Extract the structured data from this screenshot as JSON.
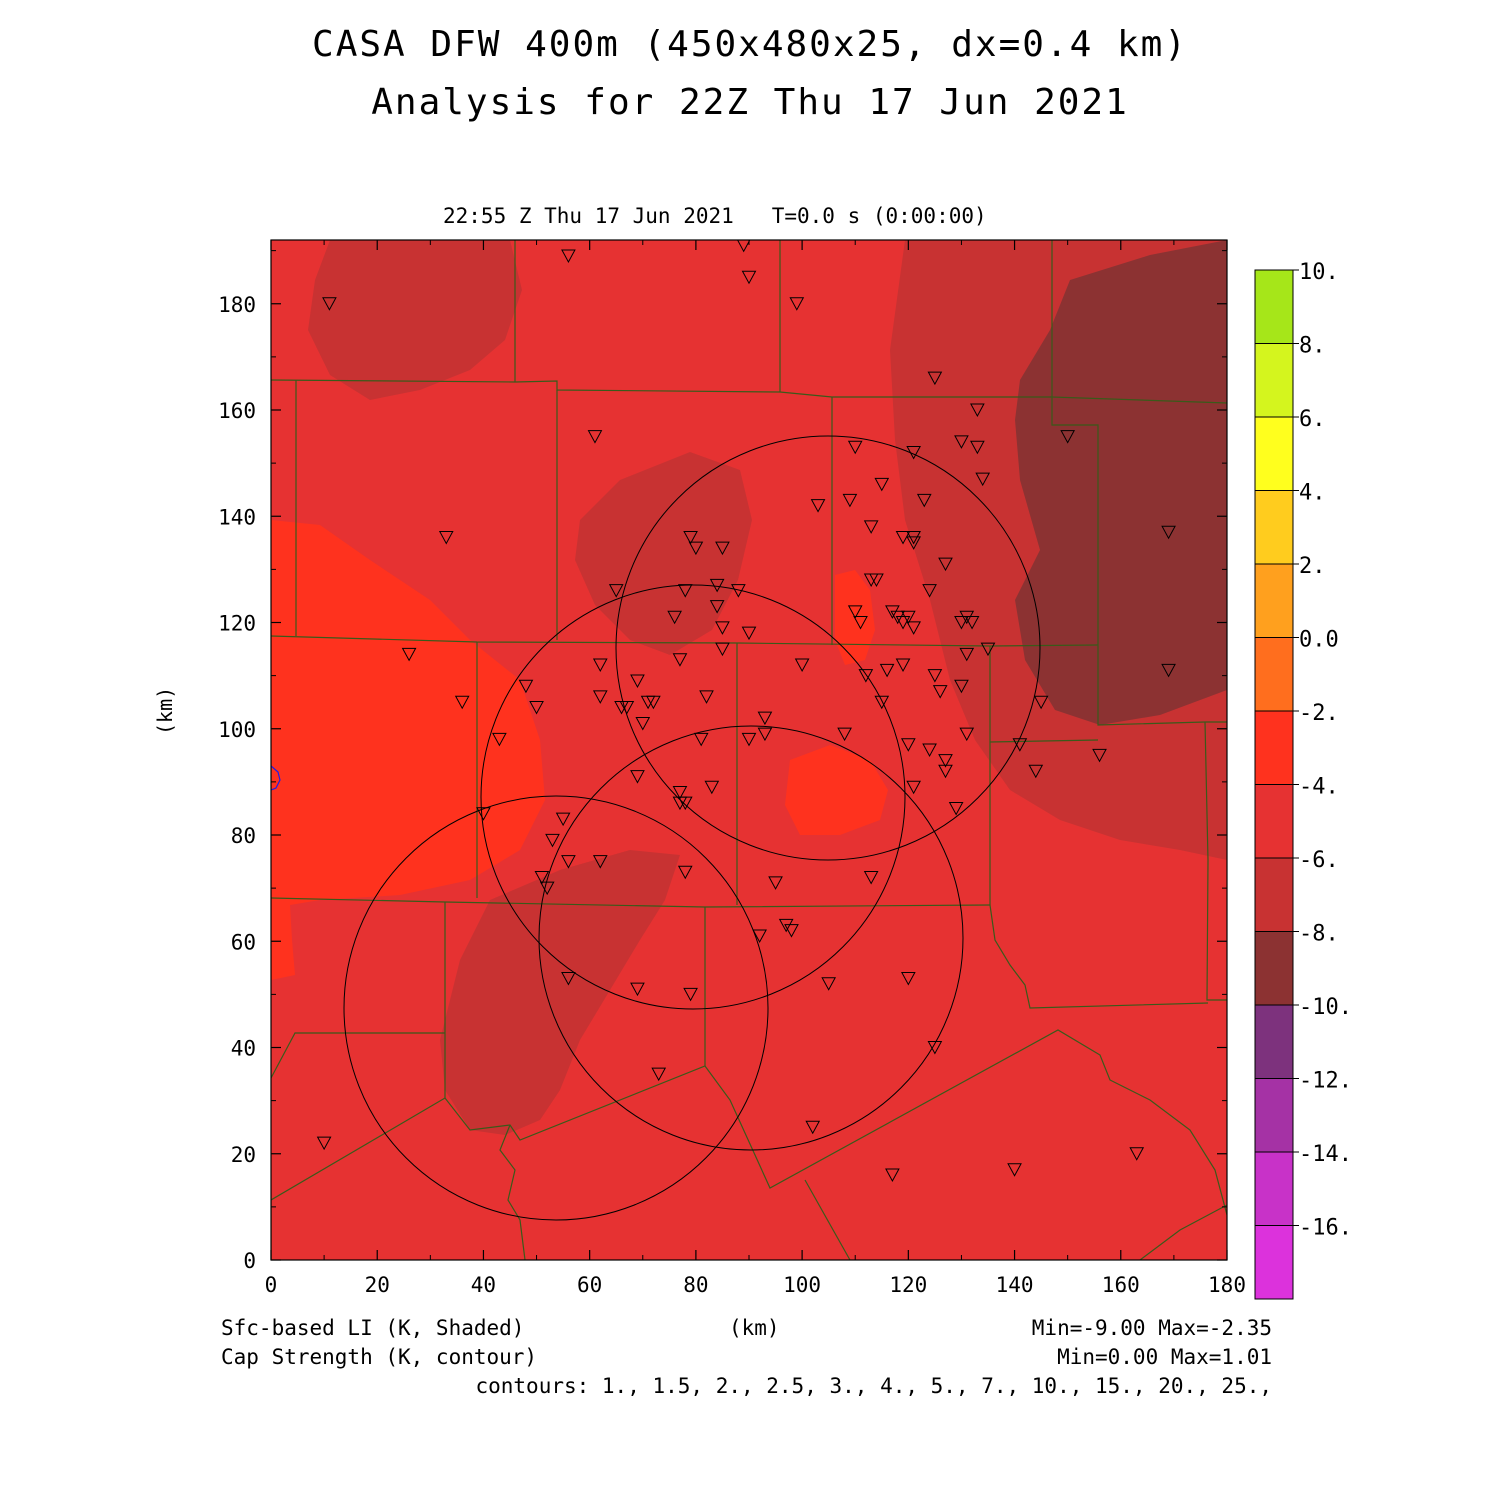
{
  "header": {
    "title_line1": "CASA DFW 400m (450x480x25, dx=0.4 km)",
    "title_line2": "Analysis for 22Z Thu 17 Jun 2021",
    "valid_time": "22:55 Z Thu 17 Jun 2021   T=0.0 s (0:00:00)"
  },
  "axes": {
    "xlabel": "(km)",
    "ylabel": "(km)",
    "xlim": [
      0,
      180
    ],
    "ylim": [
      0,
      192
    ],
    "x_ticks": [
      "0",
      "20",
      "40",
      "60",
      "80",
      "100",
      "120",
      "140",
      "160",
      "180"
    ],
    "y_ticks": [
      "0",
      "20",
      "40",
      "60",
      "80",
      "100",
      "120",
      "140",
      "160",
      "180"
    ]
  },
  "colorbar": {
    "labels": [
      "10.",
      "8.",
      "6.",
      "4.",
      "2.",
      "0.0",
      "-2.",
      "-4.",
      "-6.",
      "-8.",
      "-10.",
      "-12.",
      "-14.",
      "-16."
    ],
    "colors": [
      "#a6e619",
      "#d4f51e",
      "#ffff1e",
      "#ffcc1e",
      "#ffa01e",
      "#ff6e1e",
      "#ff321e",
      "#e63232",
      "#c83232",
      "#8c3232",
      "#7d327d",
      "#a532a5",
      "#c832c8",
      "#dc32dc"
    ]
  },
  "legend": {
    "shaded_label": "Sfc-based LI (K, Shaded)",
    "shaded_range": "Min=-9.00 Max=-2.35",
    "contour_label": "Cap Strength (K, contour)",
    "contour_range": "Min=0.00 Max=1.01",
    "contour_levels": "contours: 1., 1.5, 2., 2.5, 3., 4., 5., 7., 10., 15., 20., 25.,"
  },
  "map_colors": {
    "background": "#e63232",
    "lighter": "#ff321e",
    "darker": "#c83232",
    "darkest": "#8c3232",
    "county_lines": "#3a5a1a"
  }
}
